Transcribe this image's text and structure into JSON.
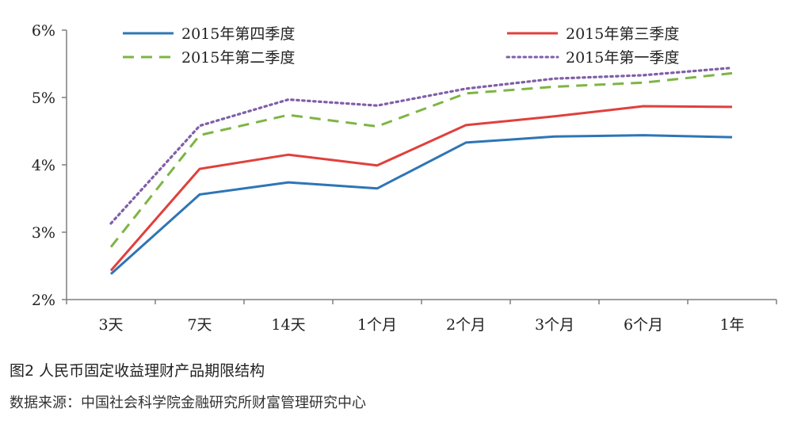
{
  "chart_data": {
    "type": "line",
    "categories": [
      "3天",
      "7天",
      "14天",
      "1个月",
      "2个月",
      "3个月",
      "6个月",
      "1年"
    ],
    "y_tick_labels": [
      "2%",
      "3%",
      "4%",
      "5%",
      "6%"
    ],
    "ylim": [
      2,
      6
    ],
    "unit": "%",
    "grid": false,
    "legend_position": "top",
    "series": [
      {
        "name": "2015年第四季度",
        "color": "#2E75B6",
        "style": "solid",
        "values": [
          2.38,
          3.56,
          3.74,
          3.65,
          4.33,
          4.42,
          4.44,
          4.41
        ]
      },
      {
        "name": "2015年第三季度",
        "color": "#E0403C",
        "style": "solid",
        "values": [
          2.43,
          3.94,
          4.15,
          3.99,
          4.59,
          4.72,
          4.87,
          4.86
        ]
      },
      {
        "name": "2015年第二季度",
        "color": "#7DB544",
        "style": "dashed",
        "values": [
          2.78,
          4.44,
          4.74,
          4.57,
          5.06,
          5.16,
          5.22,
          5.36
        ]
      },
      {
        "name": "2015年第一季度",
        "color": "#7F5FA8",
        "style": "dotted",
        "values": [
          3.13,
          4.58,
          4.97,
          4.88,
          5.13,
          5.28,
          5.33,
          5.44
        ]
      }
    ]
  },
  "caption": {
    "title": "图2  人民币固定收益理财产品期限结构",
    "source": "数据来源：中国社会科学院金融研究所财富管理研究中心"
  }
}
